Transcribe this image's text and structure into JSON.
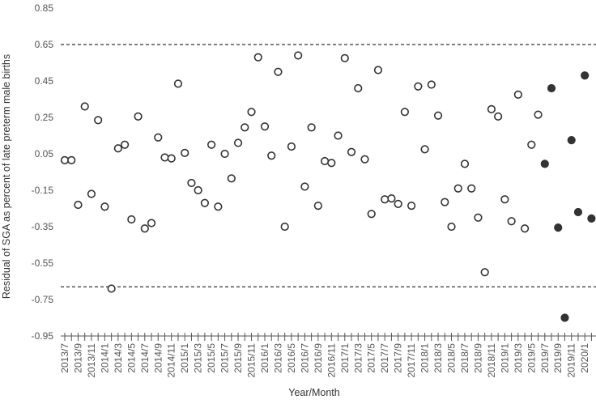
{
  "chart_data": {
    "type": "scatter",
    "title": "",
    "xlabel": "Year/Month",
    "ylabel": "Residual of SGA as percent of late preterm male births",
    "ylim": [
      -0.95,
      0.85
    ],
    "y_ticks": [
      "0.85",
      "0.65",
      "0.45",
      "0.25",
      "0.05",
      "-0.15",
      "-0.35",
      "-0.55",
      "-0.75",
      "-0.95"
    ],
    "x_tick_labels": [
      "2013/7",
      "2013/9",
      "2013/11",
      "2014/1",
      "2014/3",
      "2014/5",
      "2014/7",
      "2014/9",
      "2014/11",
      "2015/1",
      "2015/3",
      "2015/5",
      "2015/7",
      "2015/9",
      "2015/11",
      "2016/1",
      "2016/3",
      "2016/5",
      "2016/7",
      "2016/9",
      "2016/11",
      "2017/1",
      "2017/3",
      "2017/5",
      "2017/7",
      "2017/9",
      "2017/11",
      "2018/1",
      "2018/3",
      "2018/5",
      "2018/7",
      "2018/9",
      "2018/11",
      "2019/1",
      "2019/3",
      "2019/5",
      "2019/7",
      "2019/9",
      "2019/11",
      "2020/1"
    ],
    "months": [
      "2013/7",
      "2013/8",
      "2013/9",
      "2013/10",
      "2013/11",
      "2013/12",
      "2014/1",
      "2014/2",
      "2014/3",
      "2014/4",
      "2014/5",
      "2014/6",
      "2014/7",
      "2014/8",
      "2014/9",
      "2014/10",
      "2014/11",
      "2014/12",
      "2015/1",
      "2015/2",
      "2015/3",
      "2015/4",
      "2015/5",
      "2015/6",
      "2015/7",
      "2015/8",
      "2015/9",
      "2015/10",
      "2015/11",
      "2015/12",
      "2016/1",
      "2016/2",
      "2016/3",
      "2016/4",
      "2016/5",
      "2016/6",
      "2016/7",
      "2016/8",
      "2016/9",
      "2016/10",
      "2016/11",
      "2016/12",
      "2017/1",
      "2017/2",
      "2017/3",
      "2017/4",
      "2017/5",
      "2017/6",
      "2017/7",
      "2017/8",
      "2017/9",
      "2017/10",
      "2017/11",
      "2017/12",
      "2018/1",
      "2018/2",
      "2018/3",
      "2018/4",
      "2018/5",
      "2018/6",
      "2018/7",
      "2018/8",
      "2018/9",
      "2018/10",
      "2018/11",
      "2018/12",
      "2019/1",
      "2019/2",
      "2019/3",
      "2019/4",
      "2019/5",
      "2019/6",
      "2019/7",
      "2019/8",
      "2019/9",
      "2019/10",
      "2019/11",
      "2019/12",
      "2020/1",
      "2020/2"
    ],
    "control_limits": [
      0.65,
      -0.68
    ],
    "series": [
      {
        "style": "hollow",
        "color": "#333333",
        "points": [
          [
            "2013/7",
            0.015
          ],
          [
            "2013/8",
            0.015
          ],
          [
            "2013/9",
            -0.23
          ],
          [
            "2013/10",
            0.31
          ],
          [
            "2013/11",
            -0.17
          ],
          [
            "2013/12",
            0.235
          ],
          [
            "2014/1",
            -0.24
          ],
          [
            "2014/2",
            -0.69
          ],
          [
            "2014/3",
            0.08
          ],
          [
            "2014/4",
            0.1
          ],
          [
            "2014/5",
            -0.31
          ],
          [
            "2014/6",
            0.255
          ],
          [
            "2014/7",
            -0.36
          ],
          [
            "2014/8",
            -0.33
          ],
          [
            "2014/9",
            0.14
          ],
          [
            "2014/10",
            0.03
          ],
          [
            "2014/11",
            0.025
          ],
          [
            "2014/12",
            0.435
          ],
          [
            "2015/1",
            0.055
          ],
          [
            "2015/2",
            -0.11
          ],
          [
            "2015/3",
            -0.15
          ],
          [
            "2015/4",
            -0.22
          ],
          [
            "2015/5",
            0.1
          ],
          [
            "2015/6",
            -0.24
          ],
          [
            "2015/7",
            0.05
          ],
          [
            "2015/8",
            -0.085
          ],
          [
            "2015/9",
            0.11
          ],
          [
            "2015/10",
            0.195
          ],
          [
            "2015/11",
            0.28
          ],
          [
            "2015/12",
            0.58
          ],
          [
            "2016/1",
            0.2
          ],
          [
            "2016/2",
            0.04
          ],
          [
            "2016/3",
            0.5
          ],
          [
            "2016/4",
            -0.35
          ],
          [
            "2016/5",
            0.09
          ],
          [
            "2016/6",
            0.59
          ],
          [
            "2016/7",
            -0.13
          ],
          [
            "2016/8",
            0.195
          ],
          [
            "2016/9",
            -0.235
          ],
          [
            "2016/10",
            0.01
          ],
          [
            "2016/11",
            0.0
          ],
          [
            "2016/12",
            0.15
          ],
          [
            "2017/1",
            0.575
          ],
          [
            "2017/2",
            0.06
          ],
          [
            "2017/3",
            0.41
          ],
          [
            "2017/4",
            0.02
          ],
          [
            "2017/5",
            -0.28
          ],
          [
            "2017/6",
            0.51
          ],
          [
            "2017/7",
            -0.2
          ],
          [
            "2017/8",
            -0.195
          ],
          [
            "2017/9",
            -0.225
          ],
          [
            "2017/10",
            0.28
          ],
          [
            "2017/11",
            -0.235
          ],
          [
            "2017/12",
            0.42
          ],
          [
            "2018/1",
            0.075
          ],
          [
            "2018/2",
            0.43
          ],
          [
            "2018/3",
            0.26
          ],
          [
            "2018/4",
            -0.215
          ],
          [
            "2018/5",
            -0.35
          ],
          [
            "2018/6",
            -0.14
          ],
          [
            "2018/7",
            -0.005
          ],
          [
            "2018/8",
            -0.14
          ],
          [
            "2018/9",
            -0.3
          ],
          [
            "2018/10",
            -0.6
          ],
          [
            "2018/11",
            0.295
          ],
          [
            "2018/12",
            0.255
          ],
          [
            "2019/1",
            -0.2
          ],
          [
            "2019/2",
            -0.32
          ],
          [
            "2019/3",
            0.375
          ],
          [
            "2019/4",
            -0.36
          ],
          [
            "2019/5",
            0.1
          ],
          [
            "2019/6",
            0.265
          ]
        ]
      },
      {
        "style": "filled",
        "color": "#333333",
        "points": [
          [
            "2019/7",
            -0.005
          ],
          [
            "2019/8",
            0.41
          ],
          [
            "2019/9",
            -0.355
          ],
          [
            "2019/10",
            -0.85
          ],
          [
            "2019/11",
            0.125
          ],
          [
            "2019/12",
            -0.27
          ],
          [
            "2020/1",
            0.48
          ],
          [
            "2020/2",
            -0.305
          ]
        ]
      }
    ],
    "grid": false,
    "legend": "none"
  }
}
